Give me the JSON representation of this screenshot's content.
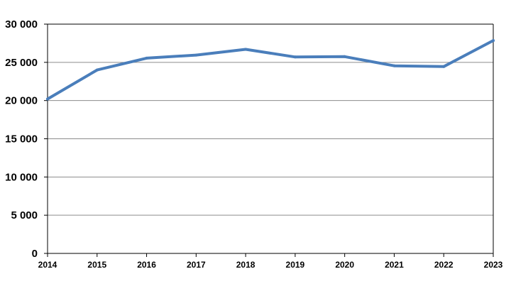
{
  "chart_data": {
    "type": "line",
    "title": "",
    "xlabel": "",
    "ylabel": "",
    "x": [
      "2014",
      "2015",
      "2016",
      "2017",
      "2018",
      "2019",
      "2020",
      "2021",
      "2022",
      "2023"
    ],
    "y_tick_values": [
      0,
      5000,
      10000,
      15000,
      20000,
      25000,
      30000
    ],
    "y_tick_labels": [
      "0",
      "5 000",
      "10 000",
      "15 000",
      "20 000",
      "25 000",
      "30 000"
    ],
    "ylim": [
      0,
      30000
    ],
    "grid": "horizontal",
    "legend": "none",
    "series": [
      {
        "color": "#4a7ebb",
        "values": [
          20200,
          24000,
          25550,
          25950,
          26700,
          25700,
          25750,
          24550,
          24450,
          27850
        ]
      }
    ]
  }
}
